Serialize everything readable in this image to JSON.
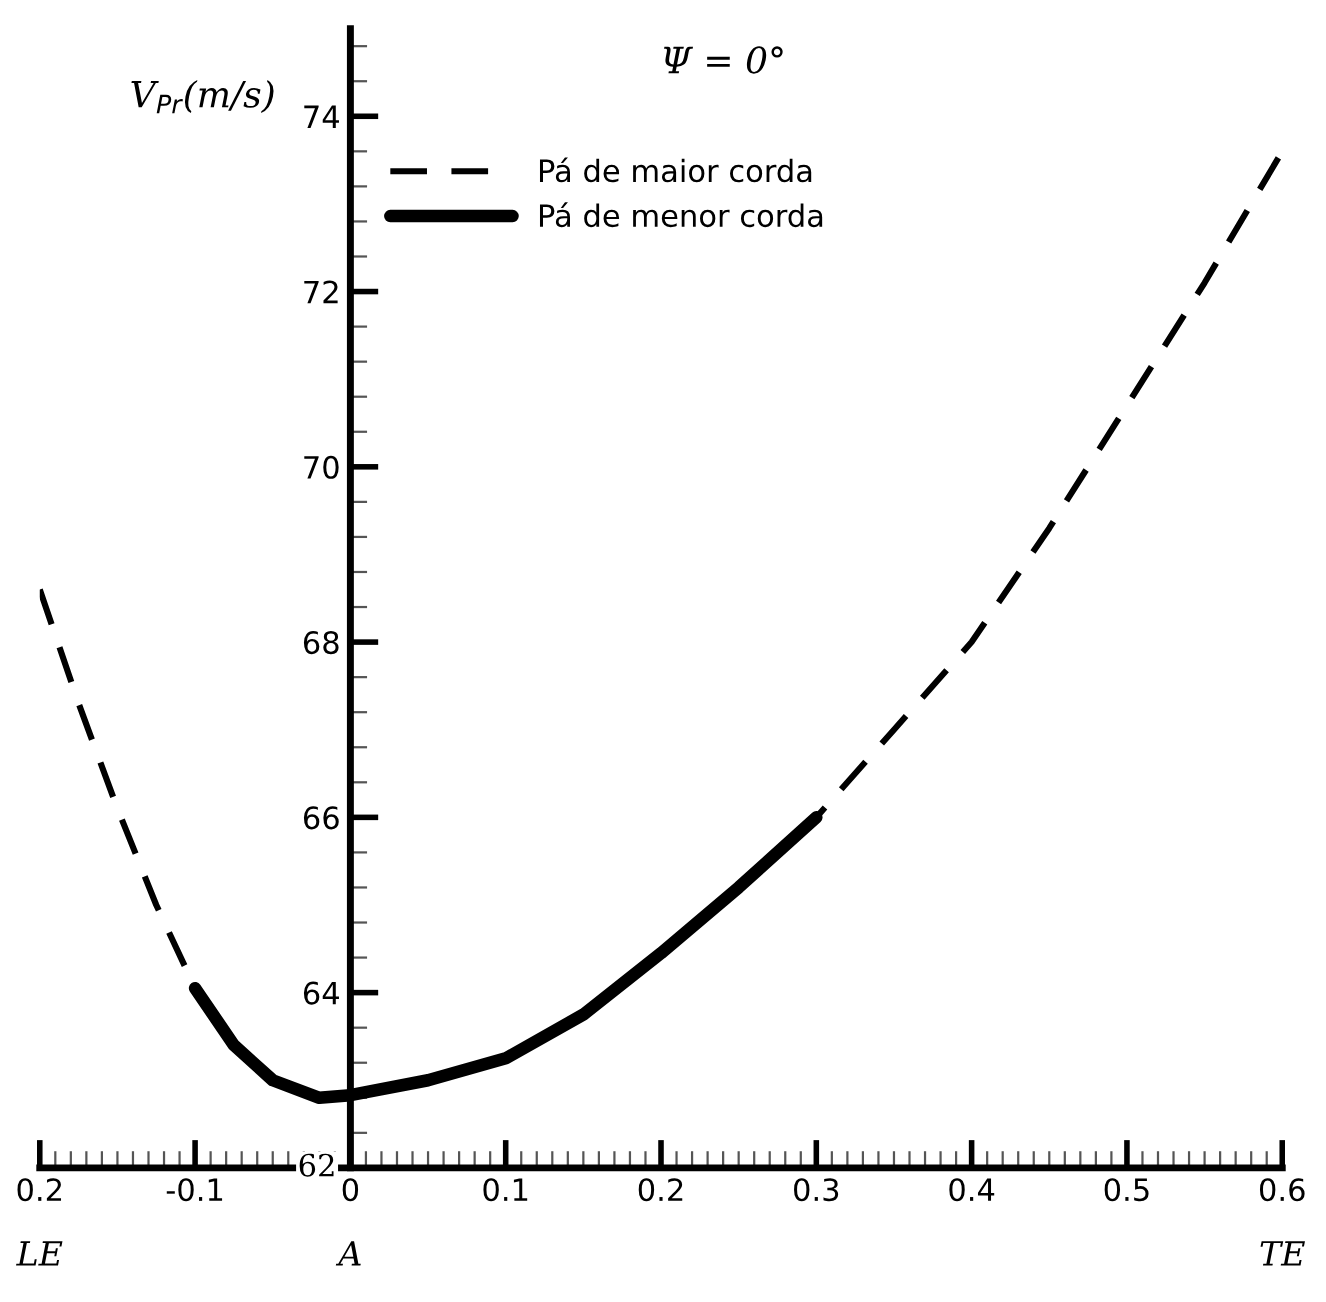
{
  "chart_data": {
    "type": "line",
    "title": "Ψ = 0°",
    "ylabel": "V$_{Pr}$(m/s)",
    "xlim": [
      -0.2,
      0.6
    ],
    "ylim": [
      62,
      75
    ],
    "xticks": [
      {
        "value": -0.2,
        "label": "0.2"
      },
      -0.1,
      0,
      0.1,
      0.2,
      0.3,
      0.4,
      0.5,
      0.6
    ],
    "yticks": [
      62,
      64,
      66,
      68,
      70,
      72,
      74
    ],
    "legend": "top left",
    "grid": false,
    "annotations": [
      "LE",
      "A",
      "TE"
    ],
    "series": [
      {
        "name": "Pá de maior corda",
        "color": "#000000",
        "line_style": "dashed",
        "x": [
          -0.2,
          -0.175,
          -0.15,
          -0.125,
          -0.1,
          -0.075,
          -0.05,
          -0.02,
          0,
          0.05,
          0.1,
          0.15,
          0.2,
          0.25,
          0.3,
          0.35,
          0.4,
          0.45,
          0.5,
          0.55,
          0.6
        ],
        "values": [
          68.6,
          67.3,
          66.1,
          65.0,
          64.05,
          63.4,
          63.0,
          62.8,
          62.83,
          63.0,
          63.25,
          63.75,
          64.45,
          65.2,
          66.0,
          67.0,
          68.0,
          69.3,
          70.7,
          72.1,
          73.6
        ]
      },
      {
        "name": "Pá de menor corda",
        "color": "#000000",
        "line_style": "solid",
        "x": [
          -0.1,
          -0.075,
          -0.05,
          -0.02,
          0,
          0.05,
          0.1,
          0.15,
          0.2,
          0.25,
          0.3
        ],
        "values": [
          64.05,
          63.4,
          63.0,
          62.8,
          62.83,
          63.0,
          63.25,
          63.75,
          64.45,
          65.2,
          66.0
        ]
      }
    ]
  }
}
